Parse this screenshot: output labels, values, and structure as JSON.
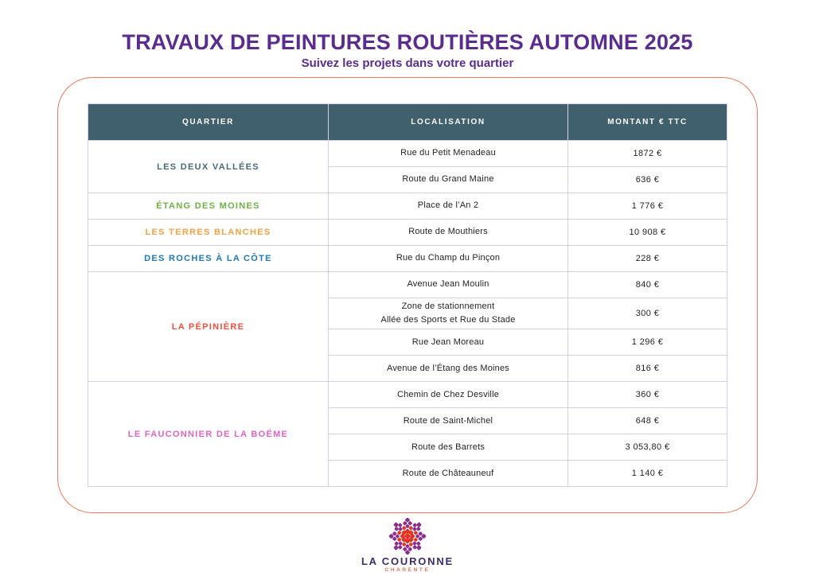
{
  "page": {
    "title": "TRAVAUX DE PEINTURES ROUTIÈRES AUTOMNE 2025",
    "subtitle": "Suivez les projets dans votre quartier"
  },
  "colors": {
    "title_purple": "#5B2C8F",
    "header_bg": "#41606D",
    "header_text": "#FFFFFF",
    "table_border": "#D5CCE8",
    "container_border": "#F0765C",
    "cell_text": "#231F20",
    "logo_purple": "#8E2D8F",
    "logo_red": "#E63323"
  },
  "table": {
    "headers": [
      "QUARTIER",
      "LOCALISATION",
      "MONTANT € TTC"
    ],
    "groups": [
      {
        "quartier": "LES DEUX VALLÉES",
        "color": "#44697B",
        "rows": [
          {
            "localisation": "Rue du Petit Menadeau",
            "montant": "1872 €"
          },
          {
            "localisation": "Route du Grand Maine",
            "montant": "636 €"
          }
        ]
      },
      {
        "quartier": "ÉTANG DES MOINES",
        "color": "#6CB33E",
        "rows": [
          {
            "localisation": "Place de l’An 2",
            "montant": "1 776 €"
          }
        ]
      },
      {
        "quartier": "LES TERRES BLANCHES",
        "color": "#F9A03F",
        "rows": [
          {
            "localisation": "Route de Mouthiers",
            "montant": "10 908 €"
          }
        ]
      },
      {
        "quartier": "DES ROCHES À LA CÔTE",
        "color": "#2178B4",
        "rows": [
          {
            "localisation": "Rue du Champ du Pinçon",
            "montant": "228 €"
          }
        ]
      },
      {
        "quartier": "LA PÉPINIÈRE",
        "color": "#F04E3E",
        "rows": [
          {
            "localisation": "Avenue Jean Moulin",
            "montant": "840 €"
          },
          {
            "localisation": "Zone de stationnement\nAllée des Sports et Rue du Stade",
            "montant": "300 €"
          },
          {
            "localisation": "Rue Jean Moreau",
            "montant": "1 296 €"
          },
          {
            "localisation": "Avenue de l’Étang des Moines",
            "montant": "816 €"
          }
        ]
      },
      {
        "quartier": "LE FAUCONNIER DE LA BOËME",
        "color": "#E262C4",
        "rows": [
          {
            "localisation": "Chemin de Chez Desville",
            "montant": "360 €"
          },
          {
            "localisation": "Route de Saint-Michel",
            "montant": "648 €"
          },
          {
            "localisation": "Route des Barrets",
            "montant": "3 053,80 €"
          },
          {
            "localisation": "Route de Châteauneuf",
            "montant": "1 140 €"
          }
        ]
      }
    ]
  },
  "footer": {
    "logo_title": "LA COURONNE",
    "logo_subtitle": "CHARENTE"
  }
}
